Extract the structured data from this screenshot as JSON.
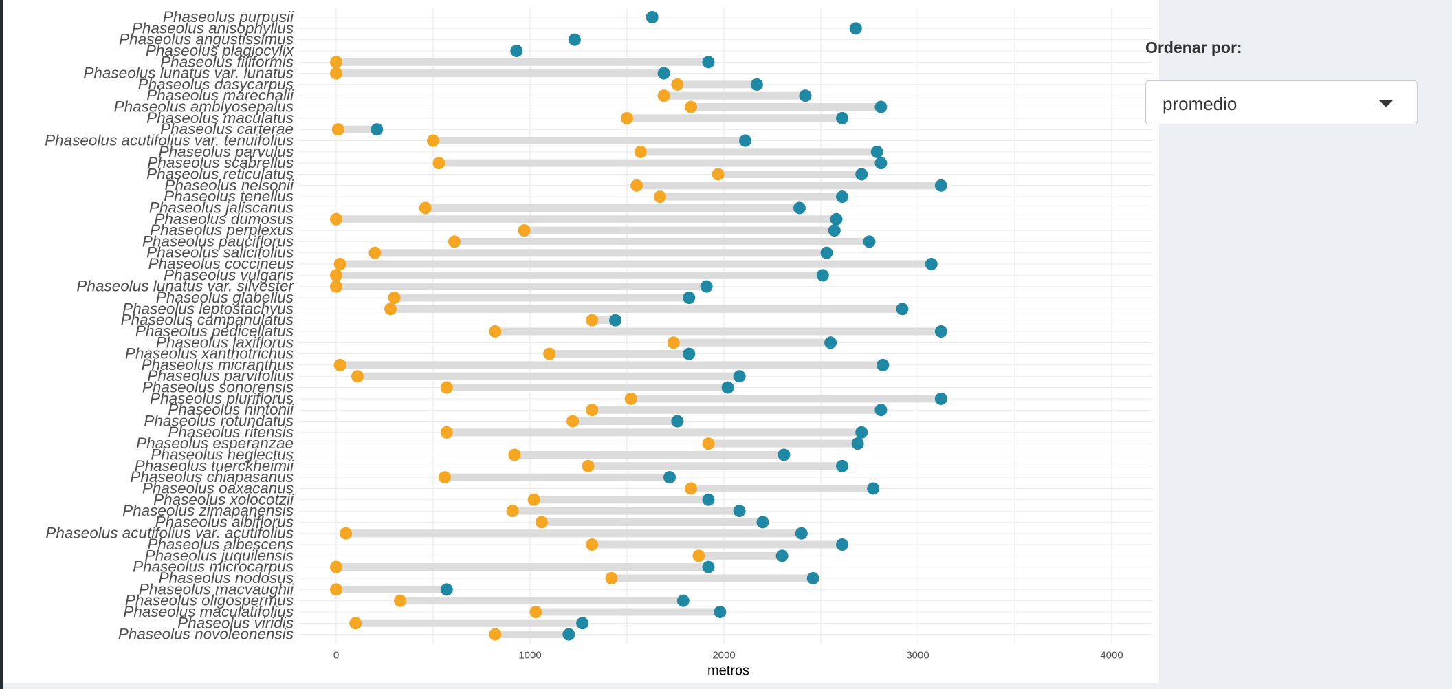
{
  "controls": {
    "order_label": "Ordenar por:",
    "order_value": "promedio"
  },
  "colors": {
    "min_point": "#f5a623",
    "max_point": "#1f88a4",
    "range_bar": "#dcdcdc",
    "grid": "#ebebeb"
  },
  "chart_data": {
    "type": "dumbbell",
    "xlabel": "metros",
    "xlim": [
      -100,
      4200
    ],
    "xticks": [
      0,
      1000,
      2000,
      3000,
      4000
    ],
    "grid": true,
    "rows": [
      {
        "name": "Phaseolus purpusii",
        "min": null,
        "max": 1630
      },
      {
        "name": "Phaseolus anisophyllus",
        "min": null,
        "max": 2680
      },
      {
        "name": "Phaseolus angustissimus",
        "min": null,
        "max": 1230
      },
      {
        "name": "Phaseolus plagiocylix",
        "min": null,
        "max": 930
      },
      {
        "name": "Phaseolus filiformis",
        "min": 0,
        "max": 1920
      },
      {
        "name": "Phaseolus lunatus var. lunatus",
        "min": 0,
        "max": 1690
      },
      {
        "name": "Phaseolus dasycarpus",
        "min": 1760,
        "max": 2170
      },
      {
        "name": "Phaseolus marechalii",
        "min": 1690,
        "max": 2420
      },
      {
        "name": "Phaseolus amblyosepalus",
        "min": 1830,
        "max": 2810
      },
      {
        "name": "Phaseolus maculatus",
        "min": 1500,
        "max": 2610
      },
      {
        "name": "Phaseolus carterae",
        "min": 10,
        "max": 210
      },
      {
        "name": "Phaseolus acutifolius var. tenuifolius",
        "min": 500,
        "max": 2110
      },
      {
        "name": "Phaseolus parvulus",
        "min": 1570,
        "max": 2790
      },
      {
        "name": "Phaseolus scabrellus",
        "min": 530,
        "max": 2810
      },
      {
        "name": "Phaseolus reticulatus",
        "min": 1970,
        "max": 2710
      },
      {
        "name": "Phaseolus nelsonii",
        "min": 1550,
        "max": 3120
      },
      {
        "name": "Phaseolus tenellus",
        "min": 1670,
        "max": 2610
      },
      {
        "name": "Phaseolus jaliscanus",
        "min": 460,
        "max": 2390
      },
      {
        "name": "Phaseolus dumosus",
        "min": 0,
        "max": 2580
      },
      {
        "name": "Phaseolus perplexus",
        "min": 970,
        "max": 2570
      },
      {
        "name": "Phaseolus pauciflorus",
        "min": 610,
        "max": 2750
      },
      {
        "name": "Phaseolus salicifolius",
        "min": 200,
        "max": 2530
      },
      {
        "name": "Phaseolus coccineus",
        "min": 20,
        "max": 3070
      },
      {
        "name": "Phaseolus vulgaris",
        "min": 0,
        "max": 2510
      },
      {
        "name": "Phaseolus lunatus var. silvester",
        "min": 0,
        "max": 1910
      },
      {
        "name": "Phaseolus glabellus",
        "min": 300,
        "max": 1820
      },
      {
        "name": "Phaseolus leptostachyus",
        "min": 280,
        "max": 2920
      },
      {
        "name": "Phaseolus campanulatus",
        "min": 1320,
        "max": 1440
      },
      {
        "name": "Phaseolus pedicellatus",
        "min": 820,
        "max": 3120
      },
      {
        "name": "Phaseolus laxiflorus",
        "min": 1740,
        "max": 2550
      },
      {
        "name": "Phaseolus xanthotrichus",
        "min": 1100,
        "max": 1820
      },
      {
        "name": "Phaseolus micranthus",
        "min": 20,
        "max": 2820
      },
      {
        "name": "Phaseolus parvifolius",
        "min": 110,
        "max": 2080
      },
      {
        "name": "Phaseolus sonorensis",
        "min": 570,
        "max": 2020
      },
      {
        "name": "Phaseolus pluriflorus",
        "min": 1520,
        "max": 3120
      },
      {
        "name": "Phaseolus hintonii",
        "min": 1320,
        "max": 2810
      },
      {
        "name": "Phaseolus rotundatus",
        "min": 1220,
        "max": 1760
      },
      {
        "name": "Phaseolus ritensis",
        "min": 570,
        "max": 2710
      },
      {
        "name": "Phaseolus esperanzae",
        "min": 1920,
        "max": 2690
      },
      {
        "name": "Phaseolus neglectus",
        "min": 920,
        "max": 2310
      },
      {
        "name": "Phaseolus tuerckheimii",
        "min": 1300,
        "max": 2610
      },
      {
        "name": "Phaseolus chiapasanus",
        "min": 560,
        "max": 1720
      },
      {
        "name": "Phaseolus oaxacanus",
        "min": 1830,
        "max": 2770
      },
      {
        "name": "Phaseolus xolocotzii",
        "min": 1020,
        "max": 1920
      },
      {
        "name": "Phaseolus zimapanensis",
        "min": 910,
        "max": 2080
      },
      {
        "name": "Phaseolus albiflorus",
        "min": 1060,
        "max": 2200
      },
      {
        "name": "Phaseolus acutifolius var. acutifolius",
        "min": 50,
        "max": 2400
      },
      {
        "name": "Phaseolus albescens",
        "min": 1320,
        "max": 2610
      },
      {
        "name": "Phaseolus juquilensis",
        "min": 1870,
        "max": 2300
      },
      {
        "name": "Phaseolus microcarpus",
        "min": 0,
        "max": 1920
      },
      {
        "name": "Phaseolus nodosus",
        "min": 1420,
        "max": 2460
      },
      {
        "name": "Phaseolus macvaughii",
        "min": 0,
        "max": 570
      },
      {
        "name": "Phaseolus oligospermus",
        "min": 330,
        "max": 1790
      },
      {
        "name": "Phaseolus maculatifolius",
        "min": 1030,
        "max": 1980
      },
      {
        "name": "Phaseolus viridis",
        "min": 100,
        "max": 1270
      },
      {
        "name": "Phaseolus novoleonensis",
        "min": 820,
        "max": 1200
      }
    ]
  }
}
